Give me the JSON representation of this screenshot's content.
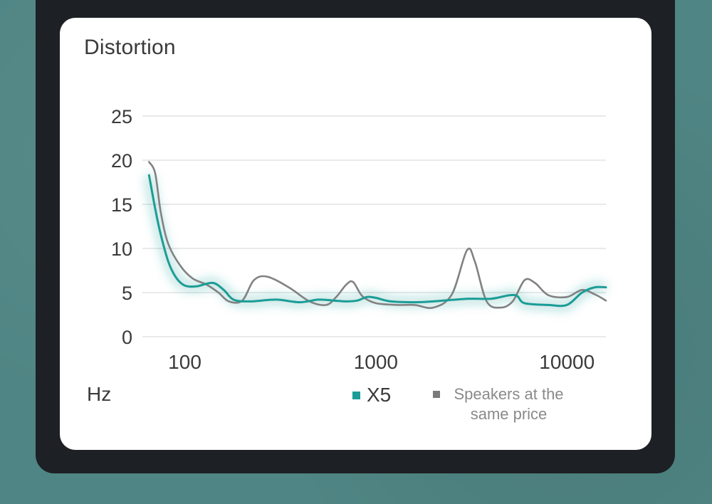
{
  "chart_data": {
    "type": "line",
    "title": "Distortion",
    "xlabel": "Hz",
    "ylabel": "",
    "x_scale": "log",
    "xlim": [
      60,
      16000
    ],
    "ylim": [
      0,
      25
    ],
    "y_ticks": [
      "0",
      "5",
      "10",
      "15",
      "20",
      "25"
    ],
    "x_ticks": [
      {
        "value": 100,
        "label": "100"
      },
      {
        "value": 1000,
        "label": "1000"
      },
      {
        "value": 10000,
        "label": "10000"
      }
    ],
    "grid": true,
    "legend": "bottom-right",
    "series": [
      {
        "name": "X5",
        "color": "#1a9d96",
        "points": [
          [
            65,
            18.3
          ],
          [
            70,
            14.5
          ],
          [
            75,
            11.5
          ],
          [
            82,
            8.5
          ],
          [
            90,
            6.7
          ],
          [
            100,
            5.8
          ],
          [
            115,
            5.7
          ],
          [
            140,
            6.1
          ],
          [
            160,
            5.3
          ],
          [
            180,
            4.2
          ],
          [
            220,
            4.0
          ],
          [
            300,
            4.2
          ],
          [
            400,
            3.9
          ],
          [
            500,
            4.2
          ],
          [
            600,
            4.1
          ],
          [
            700,
            4.0
          ],
          [
            800,
            4.1
          ],
          [
            900,
            4.5
          ],
          [
            1000,
            4.4
          ],
          [
            1200,
            4.0
          ],
          [
            1600,
            3.9
          ],
          [
            2000,
            4.0
          ],
          [
            3000,
            4.3
          ],
          [
            4000,
            4.3
          ],
          [
            5000,
            4.7
          ],
          [
            5500,
            4.6
          ],
          [
            6000,
            3.8
          ],
          [
            8000,
            3.6
          ],
          [
            10000,
            3.6
          ],
          [
            12000,
            5.0
          ],
          [
            14000,
            5.6
          ],
          [
            16000,
            5.6
          ]
        ]
      },
      {
        "name": "Speakers at the same price",
        "color": "#828282",
        "points": [
          [
            65,
            19.8
          ],
          [
            70,
            18.5
          ],
          [
            75,
            14.0
          ],
          [
            82,
            10.5
          ],
          [
            95,
            8.0
          ],
          [
            110,
            6.6
          ],
          [
            130,
            5.9
          ],
          [
            150,
            5.0
          ],
          [
            170,
            4.0
          ],
          [
            200,
            4.1
          ],
          [
            230,
            6.4
          ],
          [
            270,
            6.8
          ],
          [
            350,
            5.6
          ],
          [
            450,
            4.0
          ],
          [
            550,
            3.6
          ],
          [
            620,
            4.5
          ],
          [
            700,
            5.9
          ],
          [
            760,
            6.2
          ],
          [
            850,
            4.6
          ],
          [
            1000,
            3.8
          ],
          [
            1300,
            3.6
          ],
          [
            1600,
            3.6
          ],
          [
            2000,
            3.3
          ],
          [
            2500,
            4.8
          ],
          [
            3000,
            9.8
          ],
          [
            3300,
            8.5
          ],
          [
            3800,
            4.0
          ],
          [
            4500,
            3.3
          ],
          [
            5200,
            4.0
          ],
          [
            6000,
            6.4
          ],
          [
            6800,
            6.1
          ],
          [
            8000,
            4.7
          ],
          [
            10000,
            4.5
          ],
          [
            12000,
            5.3
          ],
          [
            14000,
            4.8
          ],
          [
            16000,
            4.1
          ]
        ]
      }
    ]
  }
}
